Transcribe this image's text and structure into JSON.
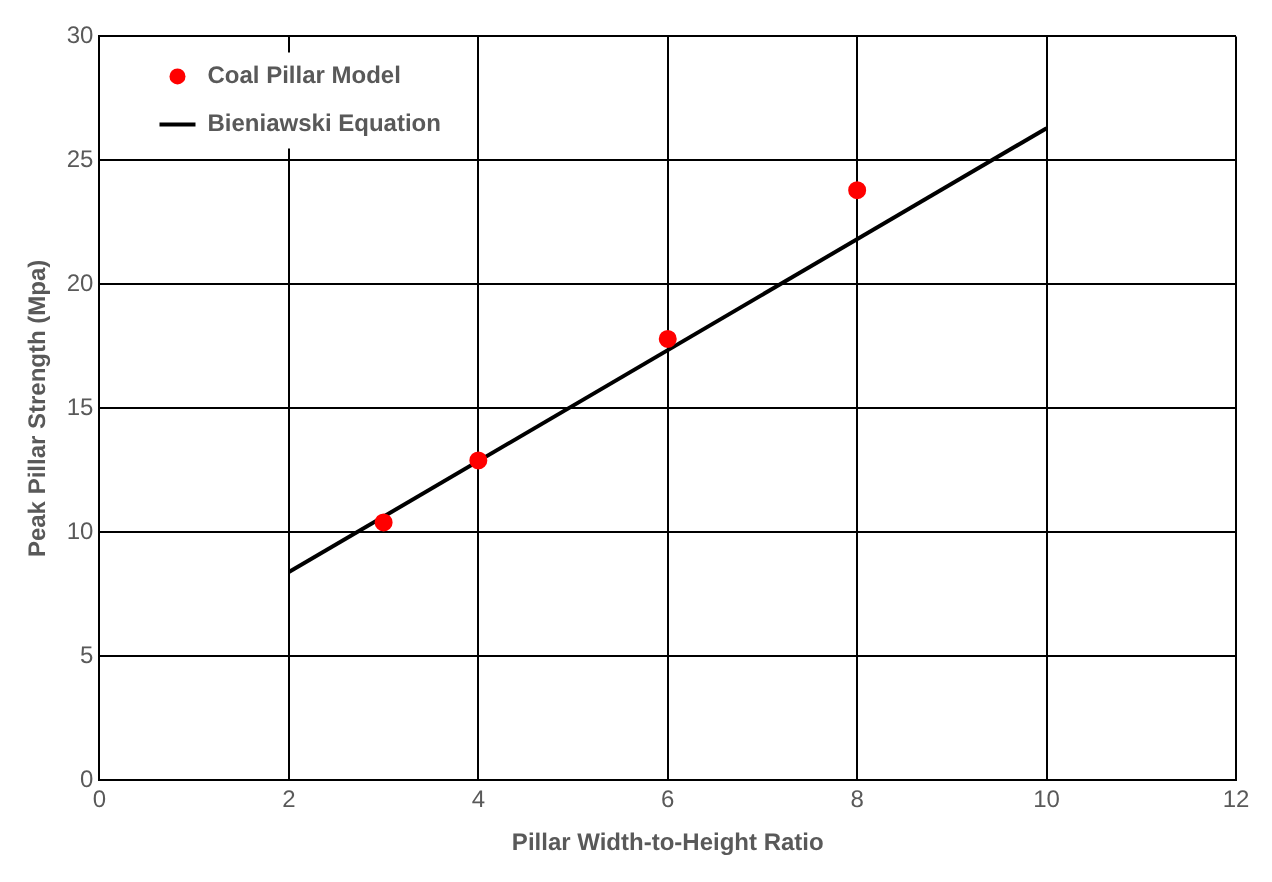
{
  "chart_data": {
    "type": "scatter",
    "xlabel": "Pillar Width-to-Height Ratio",
    "ylabel": "Peak Pillar Strength (Mpa)",
    "xlim": [
      0,
      12
    ],
    "xticks": [
      0,
      2,
      4,
      6,
      8,
      10,
      12
    ],
    "ylim": [
      0,
      30
    ],
    "yticks": [
      0,
      5,
      10,
      15,
      20,
      25,
      30
    ],
    "grid": true,
    "legend": "top left",
    "series": [
      {
        "name": "Coal Pillar Model",
        "type": "scatter",
        "color": "#ff0000",
        "marker": "circle",
        "x": [
          3,
          4,
          6,
          8
        ],
        "values": [
          10.4,
          12.9,
          17.8,
          23.8
        ]
      },
      {
        "name": "Bieniawski Equation",
        "type": "line",
        "color": "#000000",
        "marker": "none",
        "line_style": "solid",
        "x": [
          2,
          10
        ],
        "values": [
          8.4,
          26.3
        ]
      }
    ]
  }
}
